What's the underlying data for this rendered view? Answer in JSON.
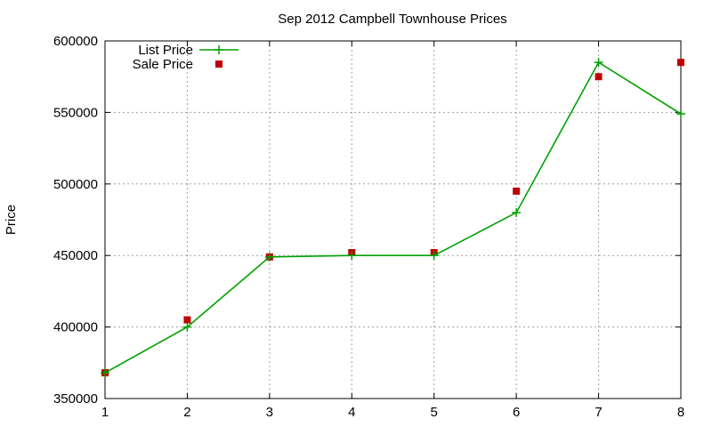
{
  "chart_data": {
    "type": "line",
    "title": "Sep 2012 Campbell Townhouse Prices",
    "xlabel": "",
    "ylabel": "Price",
    "x": [
      1,
      2,
      3,
      4,
      5,
      6,
      7,
      8
    ],
    "xlim": [
      1,
      8
    ],
    "ylim": [
      350000,
      600000
    ],
    "xticks": [
      "1",
      "2",
      "3",
      "4",
      "5",
      "6",
      "7",
      "8"
    ],
    "yticks": [
      "350000",
      "400000",
      "450000",
      "500000",
      "550000",
      "600000"
    ],
    "grid": true,
    "legend_position": "top-left",
    "series": [
      {
        "name": "List Price",
        "style": "line-with-plus-markers",
        "color": "#00a000",
        "values": [
          368000,
          400000,
          449000,
          450000,
          450000,
          480000,
          585000,
          549000
        ]
      },
      {
        "name": "Sale Price",
        "style": "square-markers",
        "color": "#c00000",
        "values": [
          368000,
          405000,
          449000,
          452000,
          452000,
          495000,
          575000,
          585000
        ]
      }
    ]
  }
}
